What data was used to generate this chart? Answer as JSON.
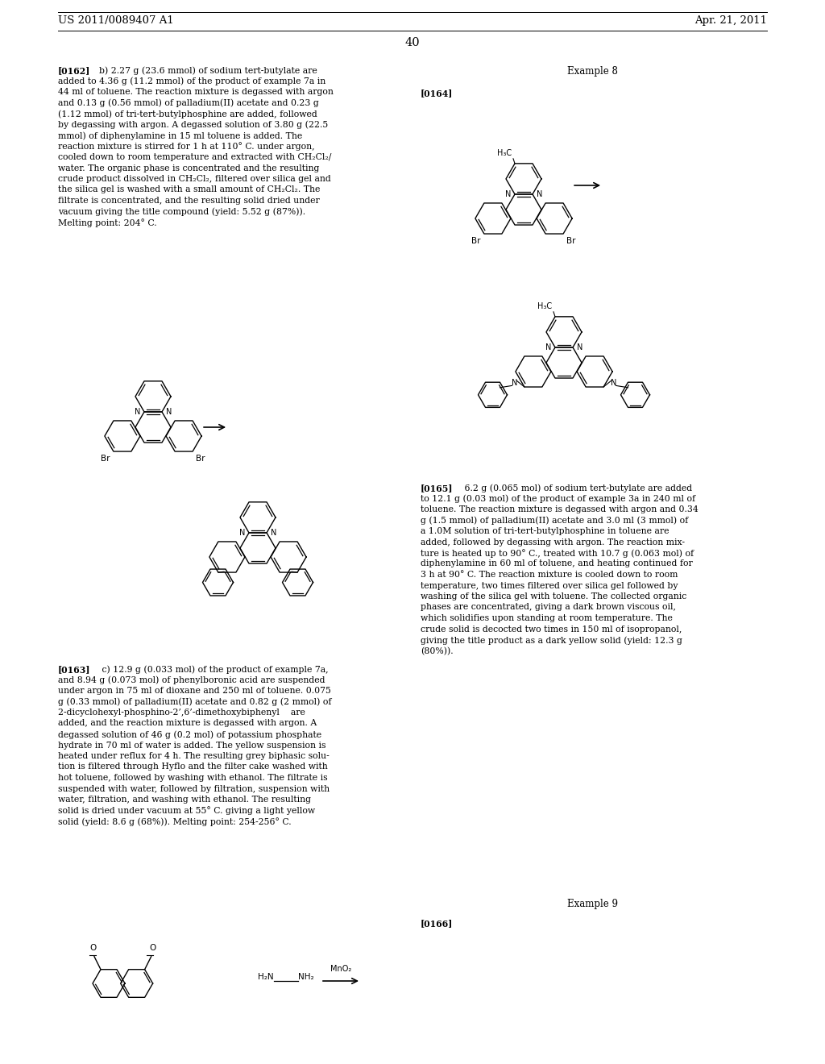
{
  "background_color": "#ffffff",
  "header_left": "US 2011/0089407 A1",
  "header_right": "Apr. 21, 2011",
  "page_number": "40",
  "body_font_size": 7.8,
  "example_font_size": 8.5,
  "header_font_size": 9.5
}
